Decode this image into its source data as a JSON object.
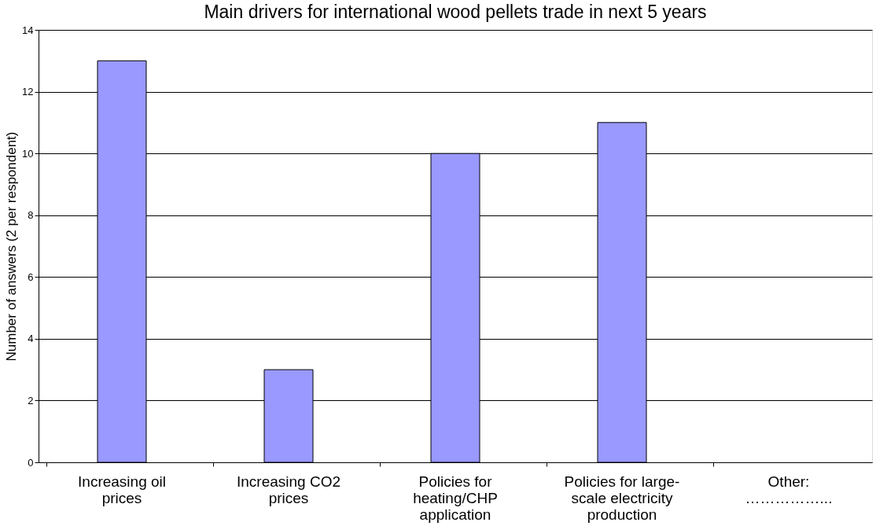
{
  "chart_data": {
    "type": "bar",
    "title": "Main drivers for international wood pellets trade in next 5 years",
    "ylabel": "Number of answers (2 per respondent)",
    "categories": [
      "Increasing oil prices",
      "Increasing CO2 prices",
      "Policies for heating/CHP application",
      "Policies for large-scale electricity production",
      "Other: ……………..."
    ],
    "values": [
      13,
      3,
      10,
      11,
      0
    ],
    "color": "#9999ff",
    "ylim": [
      0,
      14
    ],
    "yticks": [
      0,
      2,
      4,
      6,
      8,
      10,
      12,
      14
    ],
    "grid": "y"
  }
}
